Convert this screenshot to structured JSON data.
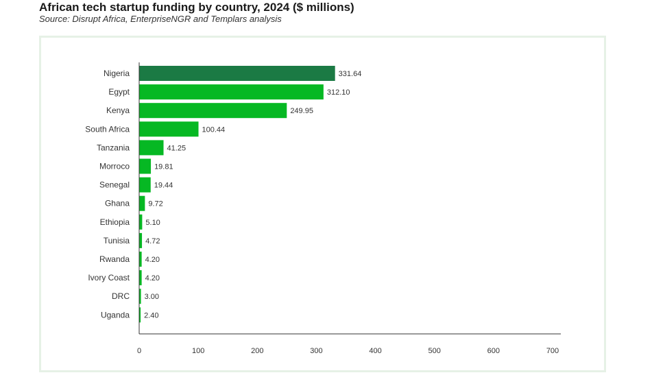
{
  "title": "African tech startup funding by country, 2024 ($ millions)",
  "subtitle": "Source: Disrupt Africa, EnterpriseNGR and Templars analysis",
  "colors": {
    "highlight": "#1b7a44",
    "bar": "#06b823",
    "axis": "#333333",
    "frame": "#e6f1e6"
  },
  "chart_data": {
    "type": "bar",
    "orientation": "horizontal",
    "categories": [
      "Nigeria",
      "Egypt",
      "Kenya",
      "South Africa",
      "Tanzania",
      "Morroco",
      "Senegal",
      "Ghana",
      "Ethiopia",
      "Tunisia",
      "Rwanda",
      "Ivory Coast",
      "DRC",
      "Uganda"
    ],
    "values": [
      331.64,
      312.1,
      249.95,
      100.44,
      41.25,
      19.81,
      19.44,
      9.72,
      5.1,
      4.72,
      4.2,
      4.2,
      3.0,
      2.4
    ],
    "value_labels": [
      "331.64",
      "312.10",
      "249.95",
      "100.44",
      "41.25",
      "19.81",
      "19.44",
      "9.72",
      "5.10",
      "4.72",
      "4.20",
      "4.20",
      "3.00",
      "2.40"
    ],
    "xlim": [
      0,
      700
    ],
    "xticks": [
      0,
      100,
      200,
      300,
      400,
      500,
      600,
      700
    ],
    "xlabel": "",
    "ylabel": "",
    "highlighted_category": "Nigeria",
    "grid": false
  }
}
